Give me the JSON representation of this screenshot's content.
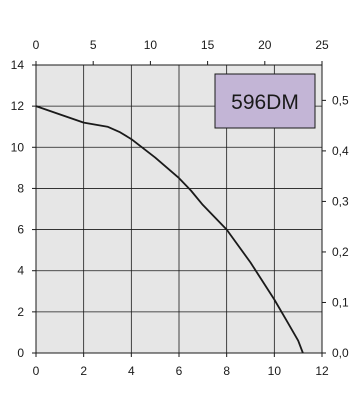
{
  "chart_data": {
    "type": "line",
    "model_label": "596DM",
    "colors": {
      "plot_background": "#e6e6e6",
      "grid": "#1a1a1a",
      "curve": "#1a1a1a",
      "model_box_fill": "#c3b5d6",
      "model_box_border": "#1a1a1a"
    },
    "grid": true,
    "x_bottom": {
      "range": [
        0,
        12
      ],
      "ticks": [
        "0",
        "2",
        "4",
        "6",
        "8",
        "10",
        "12"
      ],
      "values": [
        0,
        2,
        4,
        6,
        8,
        10,
        12
      ]
    },
    "x_top": {
      "range": [
        0,
        25
      ],
      "ticks": [
        "0",
        "5",
        "10",
        "15",
        "20",
        "25"
      ],
      "values": [
        0,
        5,
        10,
        15,
        20,
        25
      ]
    },
    "y_left": {
      "range": [
        0,
        14
      ],
      "ticks": [
        "0",
        "2",
        "4",
        "6",
        "8",
        "10",
        "12",
        "14"
      ],
      "values": [
        0,
        2,
        4,
        6,
        8,
        10,
        12,
        14
      ]
    },
    "y_right": {
      "range": [
        0,
        0.57
      ],
      "ticks": [
        "0,0",
        "0,1",
        "0,2",
        "0,3",
        "0,4",
        "0,5"
      ],
      "values": [
        0,
        0.1,
        0.2,
        0.3,
        0.4,
        0.5
      ]
    },
    "series": [
      {
        "x": [
          0,
          1,
          2,
          3,
          3.5,
          4,
          5,
          6,
          6.5,
          7,
          8,
          9,
          10,
          10.5,
          11,
          11.2
        ],
        "y": [
          12.0,
          11.6,
          11.2,
          11.0,
          10.75,
          10.4,
          9.5,
          8.5,
          7.9,
          7.2,
          6.0,
          4.4,
          2.6,
          1.6,
          0.6,
          0.0
        ]
      }
    ]
  }
}
